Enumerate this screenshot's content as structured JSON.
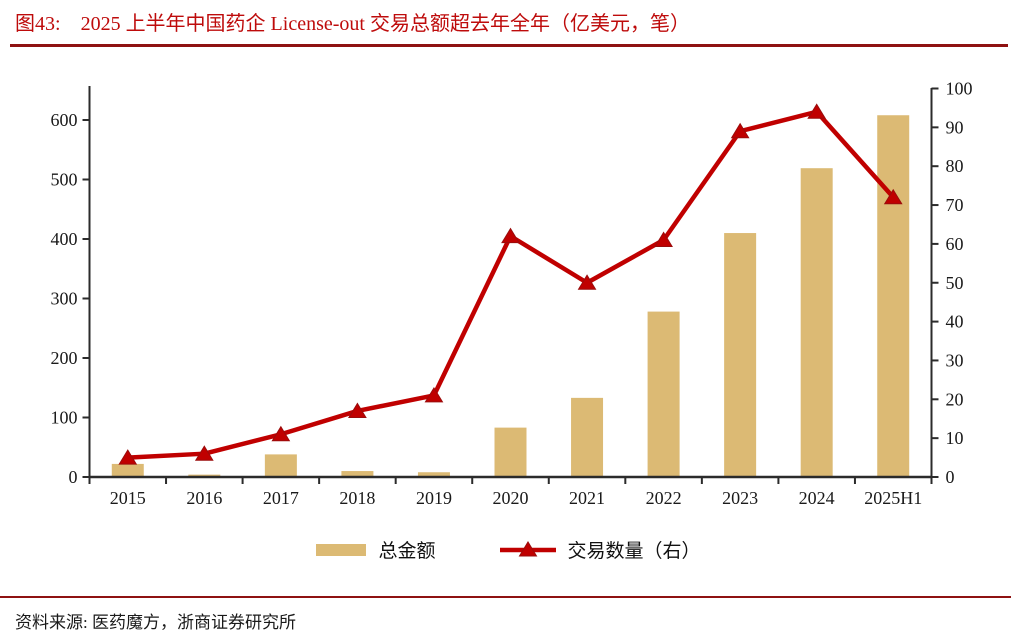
{
  "title": {
    "figure_label": "图43:",
    "text": "2025 上半年中国药企 License-out 交易总额超去年全年（亿美元，笔）"
  },
  "source": {
    "label": "资料来源:",
    "text": "医药魔方，浙商证券研究所"
  },
  "colors": {
    "title_red": "#BE0B0B",
    "rule_red": "#8E1111",
    "bar_gold": "#DCBA74",
    "line_red": "#C00000",
    "marker_edge": "#9A0C0C",
    "axis": "#2B2B2B",
    "text": "#1A1A1A"
  },
  "chart_data": {
    "type": "bar+line",
    "title": "2025 上半年中国药企 License-out 交易总额超去年全年（亿美元，笔）",
    "categories": [
      "2015",
      "2016",
      "2017",
      "2018",
      "2019",
      "2020",
      "2021",
      "2022",
      "2023",
      "2024",
      "2025H1"
    ],
    "series": [
      {
        "name": "总金额",
        "type": "bar",
        "axis": "left",
        "unit": "亿美元",
        "values": [
          22,
          4,
          38,
          10,
          8,
          83,
          133,
          278,
          410,
          519,
          608
        ]
      },
      {
        "name": "交易数量（右）",
        "type": "line",
        "axis": "right",
        "unit": "笔",
        "values": [
          5,
          6,
          11,
          17,
          21,
          62,
          50,
          61,
          89,
          94,
          72
        ]
      }
    ],
    "left_axis": {
      "min": 0,
      "max": 600,
      "step": 100
    },
    "right_axis": {
      "min": 0,
      "max": 100,
      "step": 10
    },
    "grid": false,
    "legend_position": "bottom"
  }
}
